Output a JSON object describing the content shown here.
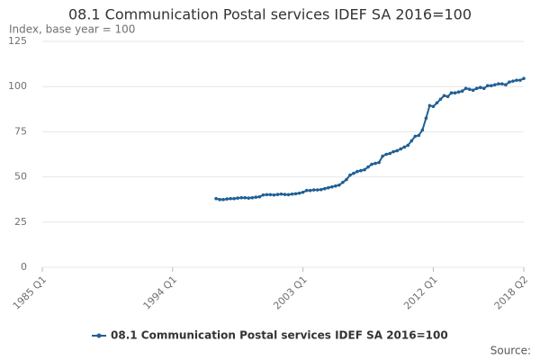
{
  "chart_data": {
    "type": "line",
    "title": "08.1 Communication Postal services IDEF SA 2016=100",
    "subtitle": "Index, base year = 100",
    "source": "Source:",
    "categories": [
      "1985 Q1",
      null,
      null,
      null,
      null,
      null,
      null,
      null,
      null,
      null,
      null,
      null,
      null,
      null,
      null,
      null,
      null,
      null,
      null,
      null,
      null,
      null,
      null,
      null,
      null,
      null,
      null,
      null,
      null,
      null,
      null,
      null,
      null,
      null,
      null,
      null,
      "1994 Q1",
      null,
      null,
      null,
      null,
      null,
      null,
      null,
      null,
      null,
      null,
      null,
      null,
      null,
      null,
      null,
      null,
      null,
      null,
      null,
      null,
      null,
      null,
      null,
      null,
      null,
      null,
      null,
      null,
      null,
      null,
      null,
      null,
      null,
      null,
      null,
      "2003 Q1",
      null,
      null,
      null,
      null,
      null,
      null,
      null,
      null,
      null,
      null,
      null,
      null,
      null,
      null,
      null,
      null,
      null,
      null,
      null,
      null,
      null,
      null,
      null,
      null,
      null,
      null,
      null,
      null,
      null,
      null,
      null,
      null,
      null,
      null,
      null,
      "2012 Q1",
      null,
      null,
      null,
      null,
      null,
      null,
      null,
      null,
      null,
      null,
      null,
      null,
      null,
      null,
      null,
      null,
      null,
      null,
      null,
      null,
      null,
      null,
      null,
      null,
      "2018 Q2"
    ],
    "series": [
      {
        "name": "08.1 Communication Postal services IDEF SA 2016=100",
        "color": "#206095",
        "values": [
          null,
          null,
          null,
          null,
          null,
          null,
          null,
          null,
          null,
          null,
          null,
          null,
          null,
          null,
          null,
          null,
          null,
          null,
          null,
          null,
          null,
          null,
          null,
          null,
          null,
          null,
          null,
          null,
          null,
          null,
          null,
          null,
          null,
          null,
          null,
          null,
          null,
          null,
          null,
          null,
          null,
          null,
          null,
          null,
          null,
          null,
          null,
          null,
          38,
          37.5,
          37.5,
          37.8,
          38,
          38,
          38.3,
          38.5,
          38.5,
          38.3,
          38.5,
          38.8,
          39,
          40,
          40.2,
          40.2,
          40,
          40.3,
          40.5,
          40.3,
          40.2,
          40.5,
          40.7,
          41,
          41.5,
          42.5,
          42.5,
          42.8,
          42.8,
          43,
          43.5,
          44,
          44.5,
          45,
          45.5,
          47,
          48.5,
          51,
          52,
          53,
          53.5,
          54,
          55.5,
          57,
          57.5,
          58,
          61.5,
          62.5,
          63,
          64,
          64.5,
          65.5,
          66.5,
          67.5,
          70,
          72.5,
          73,
          76,
          82.5,
          89.5,
          89,
          91,
          93,
          95,
          94.5,
          96.5,
          96.5,
          97,
          97.5,
          99,
          98.5,
          98,
          99,
          99.5,
          99,
          100.5,
          100.5,
          101,
          101.5,
          101.5,
          101,
          102.5,
          103,
          103.5,
          103.5,
          104.5
        ]
      }
    ],
    "ylim": [
      0,
      125
    ],
    "yticks": [
      0,
      25,
      50,
      75,
      100,
      125
    ],
    "grid": true
  }
}
